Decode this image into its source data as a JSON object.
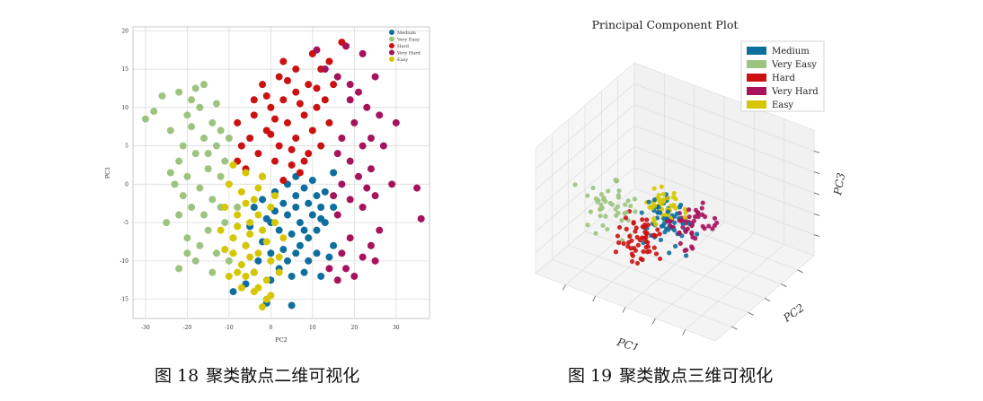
{
  "captions": {
    "fig18": {
      "prefix": "图",
      "number": "18",
      "text": "聚类散点二维可视化"
    },
    "fig19": {
      "prefix": "图",
      "number": "19",
      "text": "聚类散点三维可视化"
    }
  },
  "chart_data": [
    {
      "type": "scatter",
      "title": "",
      "xlabel": "PC2",
      "ylabel": "PC1",
      "xlim": [
        -33,
        38
      ],
      "ylim": [
        -17.5,
        20.5
      ],
      "xticks": [
        -30,
        -20,
        -10,
        0,
        10,
        20,
        30
      ],
      "yticks": [
        -15,
        -10,
        -5,
        0,
        5,
        10,
        15,
        20
      ],
      "grid": true,
      "legend_position": "top-right",
      "series": [
        {
          "name": "Medium",
          "color": "#0e6f9e",
          "points": [
            [
              -1,
              -15.5
            ],
            [
              5,
              -15.8
            ],
            [
              -9,
              -14
            ],
            [
              -6,
              -13
            ],
            [
              0,
              -12.5
            ],
            [
              5,
              -12
            ],
            [
              -4,
              -11.5
            ],
            [
              2,
              -11
            ],
            [
              8,
              -11.5
            ],
            [
              12,
              -12
            ],
            [
              -3,
              -10
            ],
            [
              4,
              -10
            ],
            [
              9,
              -10
            ],
            [
              14,
              -9.5
            ],
            [
              0,
              -9
            ],
            [
              6,
              -9
            ],
            [
              11,
              -9
            ],
            [
              7,
              -8
            ],
            [
              15,
              -8
            ],
            [
              -2,
              -7.5
            ],
            [
              9,
              -7
            ],
            [
              5,
              -6.5
            ],
            [
              2,
              -6
            ],
            [
              11,
              -6
            ],
            [
              -5,
              -5.5
            ],
            [
              0,
              -5
            ],
            [
              7,
              -5
            ],
            [
              13,
              -5
            ],
            [
              -1,
              -4.5
            ],
            [
              4,
              -4
            ],
            [
              10,
              -4
            ],
            [
              1,
              -3.5
            ],
            [
              6,
              -3
            ],
            [
              12,
              -3
            ],
            [
              -4,
              -3
            ],
            [
              3,
              -2.5
            ],
            [
              9,
              -2.5
            ],
            [
              15,
              -3
            ],
            [
              -2,
              -2
            ],
            [
              6,
              -1.5
            ],
            [
              11,
              -1.5
            ],
            [
              1,
              -1
            ],
            [
              8,
              -0.5
            ],
            [
              13,
              -1
            ],
            [
              4,
              0
            ],
            [
              10,
              0.5
            ],
            [
              6,
              1
            ],
            [
              15,
              1.5
            ],
            [
              12,
              -4.5
            ],
            [
              8,
              -6
            ],
            [
              -6,
              -8
            ],
            [
              3,
              -8.5
            ]
          ]
        },
        {
          "name": "Very Easy",
          "color": "#9cc47e",
          "points": [
            [
              -30,
              8.5
            ],
            [
              -28,
              9.5
            ],
            [
              -26,
              11.5
            ],
            [
              -22,
              12
            ],
            [
              -19,
              11
            ],
            [
              -20,
              9
            ],
            [
              -24,
              7
            ],
            [
              -17,
              10
            ],
            [
              -14,
              8
            ],
            [
              -12,
              7
            ],
            [
              -16,
              6
            ],
            [
              -21,
              5
            ],
            [
              -18,
              4
            ],
            [
              -22,
              3
            ],
            [
              -13,
              5
            ],
            [
              -10,
              6
            ],
            [
              -15,
              2
            ],
            [
              -20,
              1
            ],
            [
              -23,
              0
            ],
            [
              -12,
              1
            ],
            [
              -17,
              -0.5
            ],
            [
              -21,
              -1.5
            ],
            [
              -14,
              -2
            ],
            [
              -19,
              -3
            ],
            [
              -16,
              -4
            ],
            [
              -22,
              -4
            ],
            [
              -25,
              -5
            ],
            [
              -12,
              -3
            ],
            [
              -15,
              -6
            ],
            [
              -20,
              -7
            ],
            [
              -17,
              -8
            ],
            [
              -13,
              -9
            ],
            [
              -10,
              -10
            ],
            [
              -18,
              -10
            ],
            [
              -22,
              -11
            ],
            [
              -14,
              -11.5
            ],
            [
              -9,
              -7
            ],
            [
              -11,
              -5
            ],
            [
              -8,
              -3
            ],
            [
              -20,
              -9
            ],
            [
              -16,
              13
            ],
            [
              -18,
              12.5
            ],
            [
              -13,
              10.5
            ],
            [
              -19,
              7.5
            ],
            [
              -15,
              4
            ],
            [
              -11,
              3
            ],
            [
              -24,
              1.5
            ]
          ]
        },
        {
          "name": "Hard",
          "color": "#cc1111",
          "points": [
            [
              -8,
              8
            ],
            [
              -4,
              9
            ],
            [
              0,
              10
            ],
            [
              3,
              11
            ],
            [
              -2,
              13
            ],
            [
              2,
              14
            ],
            [
              6,
              12
            ],
            [
              9,
              13
            ],
            [
              12,
              15
            ],
            [
              14,
              16
            ],
            [
              17,
              18.5
            ],
            [
              10,
              17
            ],
            [
              6,
              15
            ],
            [
              3,
              16
            ],
            [
              -1,
              11.5
            ],
            [
              4,
              8
            ],
            [
              8,
              9
            ],
            [
              11,
              10
            ],
            [
              14,
              8
            ],
            [
              -5,
              6
            ],
            [
              -1,
              7
            ],
            [
              2,
              5
            ],
            [
              6,
              6
            ],
            [
              9,
              4
            ],
            [
              12,
              5
            ],
            [
              -3,
              4
            ],
            [
              1,
              3
            ],
            [
              5,
              2.5
            ],
            [
              8,
              3
            ],
            [
              -6,
              2
            ],
            [
              -2,
              1
            ],
            [
              3,
              0.5
            ],
            [
              7,
              1.5
            ],
            [
              -8,
              3
            ],
            [
              10,
              7
            ],
            [
              13,
              11
            ],
            [
              0,
              6.5
            ],
            [
              4,
              13.5
            ],
            [
              7,
              10.5
            ],
            [
              -4,
              11
            ],
            [
              1,
              8.5
            ],
            [
              -7,
              5
            ],
            [
              11,
              12.5
            ],
            [
              15,
              13
            ],
            [
              5,
              4.5
            ]
          ]
        },
        {
          "name": "Very Hard",
          "color": "#a6135b",
          "points": [
            [
              18,
              18
            ],
            [
              22,
              17
            ],
            [
              25,
              14
            ],
            [
              21,
              12
            ],
            [
              23,
              10
            ],
            [
              19,
              11
            ],
            [
              26,
              9
            ],
            [
              30,
              8
            ],
            [
              20,
              8
            ],
            [
              24,
              6
            ],
            [
              17,
              6
            ],
            [
              22,
              5
            ],
            [
              27,
              5
            ],
            [
              16,
              4
            ],
            [
              19,
              3
            ],
            [
              24,
              2
            ],
            [
              21,
              1
            ],
            [
              17,
              0
            ],
            [
              23,
              -0.5
            ],
            [
              25,
              -1.5
            ],
            [
              15,
              -1.5
            ],
            [
              19,
              -2
            ],
            [
              22,
              -3
            ],
            [
              16,
              -4
            ],
            [
              35,
              -0.5
            ],
            [
              36,
              -4.5
            ],
            [
              26,
              -6
            ],
            [
              24,
              -8
            ],
            [
              19,
              -7
            ],
            [
              17,
              -9
            ],
            [
              22,
              -9.5
            ],
            [
              25,
              -10
            ],
            [
              18,
              -11
            ],
            [
              20,
              -12
            ],
            [
              16,
              -12.5
            ],
            [
              14,
              -11
            ],
            [
              13,
              15
            ],
            [
              11,
              17.5
            ],
            [
              19,
              13
            ],
            [
              16,
              14
            ],
            [
              29,
              0
            ]
          ]
        },
        {
          "name": "Easy",
          "color": "#d6c600",
          "points": [
            [
              -10,
              0
            ],
            [
              -7,
              -1
            ],
            [
              -4,
              -2
            ],
            [
              -8,
              -4
            ],
            [
              -5,
              -5
            ],
            [
              -2,
              -6
            ],
            [
              -9,
              -7
            ],
            [
              -6,
              -8
            ],
            [
              -3,
              -9
            ],
            [
              0,
              -10
            ],
            [
              -7,
              -10.5
            ],
            [
              -4,
              -11.5
            ],
            [
              -1,
              -12.5
            ],
            [
              -3,
              -13.5
            ],
            [
              0,
              -14.5
            ],
            [
              -2,
              -16
            ],
            [
              -6,
              -12
            ],
            [
              -9,
              -9
            ],
            [
              -12,
              -6
            ],
            [
              -11,
              -3
            ],
            [
              -3,
              -4
            ],
            [
              1,
              -5
            ],
            [
              3,
              -7
            ],
            [
              -1,
              -7.5
            ],
            [
              2,
              -9.5
            ],
            [
              -5,
              -6.5
            ],
            [
              -8,
              -11.5
            ],
            [
              -11,
              -8.5
            ],
            [
              -6,
              -2.5
            ],
            [
              0,
              -3
            ],
            [
              -2,
              1
            ],
            [
              -6,
              1.5
            ],
            [
              -9,
              2.5
            ],
            [
              1,
              -1.5
            ],
            [
              -4,
              -14
            ],
            [
              -1,
              -15
            ],
            [
              -7,
              -13.5
            ],
            [
              -10,
              -12
            ],
            [
              -5,
              -9.5
            ],
            [
              2,
              -11.5
            ],
            [
              -3,
              -0.5
            ],
            [
              -8,
              -5.5
            ]
          ]
        }
      ]
    },
    {
      "type": "scatter",
      "title": "Principal Component Plot",
      "xlabel": "PC1",
      "ylabel": "PC2",
      "zlabel": "PC3",
      "grid": true,
      "legend_position": "top-right",
      "series": [
        {
          "name": "Medium",
          "color": "#0e6f9e"
        },
        {
          "name": "Very Easy",
          "color": "#9cc47e"
        },
        {
          "name": "Hard",
          "color": "#cc1111"
        },
        {
          "name": "Very Hard",
          "color": "#a6135b"
        },
        {
          "name": "Easy",
          "color": "#d6c600"
        }
      ]
    }
  ]
}
